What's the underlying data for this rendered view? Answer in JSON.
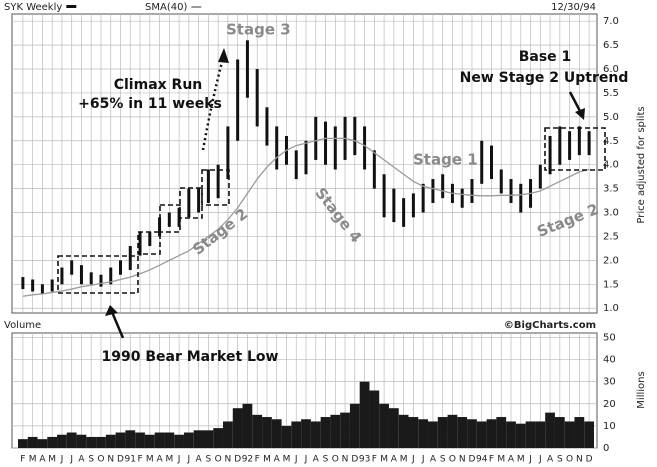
{
  "chart_data": [
    {
      "type": "hilo",
      "legend": "top-left",
      "date_label": "12/30/94",
      "credit": "©BigCharts.com",
      "ylabel": "Price adjusted for splits",
      "ylim": [
        0.9,
        7.15
      ],
      "yticks": [
        {
          "value": 1,
          "label": "1.0"
        },
        1.5,
        {
          "value": 2,
          "label": "2.0"
        },
        2.5,
        {
          "value": 3,
          "label": "3.0"
        },
        3.5,
        {
          "value": 4,
          "label": "4.0"
        },
        4.5,
        {
          "value": 5,
          "label": "5.0"
        },
        5.5,
        {
          "value": 6,
          "label": "6.0"
        },
        6.5,
        {
          "value": 7,
          "label": "7.0"
        }
      ],
      "grid": true,
      "series": [
        {
          "name": "SYK Weekly",
          "color": "#111111",
          "high": [
            1.65,
            1.6,
            1.5,
            1.6,
            1.85,
            2.0,
            1.9,
            1.75,
            1.7,
            1.85,
            2.0,
            2.3,
            2.6,
            2.6,
            2.9,
            3.0,
            3.1,
            3.5,
            3.5,
            3.9,
            4.0,
            4.8,
            6.2,
            6.6,
            6.0,
            5.2,
            4.8,
            4.6,
            4.3,
            4.5,
            5.0,
            4.9,
            4.8,
            5.0,
            5.0,
            4.8,
            4.3,
            3.8,
            3.5,
            3.3,
            3.4,
            3.6,
            3.7,
            3.8,
            3.6,
            3.5,
            3.7,
            4.5,
            4.4,
            3.9,
            3.7,
            3.6,
            3.7,
            4.0,
            4.6,
            4.8,
            4.7,
            4.8,
            4.7
          ],
          "low": [
            1.4,
            1.35,
            1.3,
            1.35,
            1.5,
            1.7,
            1.5,
            1.5,
            1.45,
            1.5,
            1.7,
            1.8,
            2.1,
            2.3,
            2.5,
            2.7,
            2.7,
            2.9,
            3.0,
            3.2,
            3.3,
            3.7,
            4.5,
            5.4,
            4.8,
            4.4,
            3.9,
            4.0,
            3.7,
            3.8,
            4.1,
            4.0,
            3.9,
            4.1,
            4.2,
            3.9,
            3.5,
            2.9,
            2.8,
            2.7,
            2.9,
            3.0,
            3.2,
            3.3,
            3.2,
            3.1,
            3.2,
            3.6,
            3.7,
            3.4,
            3.2,
            3.0,
            3.1,
            3.5,
            3.8,
            4.0,
            4.1,
            4.2,
            4.2
          ]
        },
        {
          "name": "SMA(40)",
          "color": "#9a9a9a",
          "values": [
            1.25,
            1.28,
            1.3,
            1.33,
            1.36,
            1.4,
            1.45,
            1.48,
            1.52,
            1.55,
            1.6,
            1.65,
            1.72,
            1.8,
            1.9,
            2.0,
            2.1,
            2.2,
            2.35,
            2.5,
            2.65,
            2.85,
            3.1,
            3.4,
            3.7,
            3.95,
            4.15,
            4.3,
            4.4,
            4.45,
            4.5,
            4.55,
            4.55,
            4.55,
            4.5,
            4.4,
            4.25,
            4.1,
            3.95,
            3.8,
            3.65,
            3.55,
            3.5,
            3.45,
            3.4,
            3.38,
            3.36,
            3.35,
            3.35,
            3.36,
            3.36,
            3.37,
            3.4,
            3.45,
            3.55,
            3.65,
            3.75,
            3.85,
            3.9
          ]
        }
      ],
      "annotations": {
        "stage3": "Stage 3",
        "climax": "Climax Run",
        "climax_gain": "+65% in 11 weeks",
        "base": "Base 1",
        "uptrend": "New Stage 2 Uptrend",
        "stage1": "Stage 1",
        "stage2_left": "Stage 2",
        "stage4": "Stage 4",
        "stage2_right": "Stage 2",
        "bear_low": "1990 Bear Market Low"
      }
    },
    {
      "type": "bar",
      "title": "Volume",
      "ylabel": "Millions",
      "color": "#1a1a1a",
      "ylim": [
        0,
        52
      ],
      "yticks": [
        0,
        10,
        20,
        30,
        40,
        50
      ],
      "grid": true,
      "categories": [
        "F",
        "M",
        "A",
        "M",
        "J",
        "J",
        "A",
        "S",
        "O",
        "N",
        "D",
        "91",
        "F",
        "M",
        "A",
        "M",
        "J",
        "J",
        "A",
        "S",
        "O",
        "N",
        "D",
        "92",
        "F",
        "M",
        "A",
        "M",
        "J",
        "J",
        "A",
        "S",
        "O",
        "N",
        "D",
        "93",
        "F",
        "M",
        "A",
        "M",
        "J",
        "J",
        "A",
        "S",
        "O",
        "N",
        "D",
        "94",
        "F",
        "M",
        "A",
        "M",
        "J",
        "J",
        "A",
        "S",
        "O",
        "N",
        "D"
      ],
      "values": [
        4,
        5,
        4,
        5,
        6,
        7,
        6,
        5,
        5,
        6,
        7,
        8,
        7,
        6,
        7,
        7,
        6,
        7,
        8,
        8,
        9,
        12,
        18,
        20,
        15,
        14,
        13,
        10,
        12,
        13,
        12,
        14,
        15,
        16,
        20,
        30,
        26,
        20,
        18,
        15,
        14,
        13,
        12,
        14,
        15,
        14,
        13,
        12,
        13,
        14,
        12,
        11,
        12,
        12,
        16,
        14,
        12,
        14,
        12
      ]
    }
  ]
}
